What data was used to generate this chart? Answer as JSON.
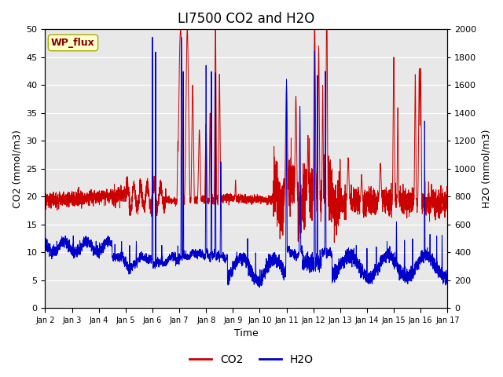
{
  "title": "LI7500 CO2 and H2O",
  "xlabel": "Time",
  "ylabel_left": "CO2 (mmol/m3)",
  "ylabel_right": "H2O (mmol/m3)",
  "ylim_left": [
    0,
    50
  ],
  "ylim_right": [
    0,
    2000
  ],
  "xlim": [
    1,
    16
  ],
  "xtick_labels": [
    "Jan 2",
    "Jan 3",
    "Jan 4",
    "Jan 5",
    "Jan 6",
    "Jan 7",
    "Jan 8",
    "Jan 9",
    "Jan 10",
    "Jan 11",
    "Jan 12",
    "Jan 13",
    "Jan 14",
    "Jan 15",
    "Jan 16",
    "Jan 17"
  ],
  "xtick_positions": [
    1,
    2,
    3,
    4,
    5,
    6,
    7,
    8,
    9,
    10,
    11,
    12,
    13,
    14,
    15,
    16
  ],
  "co2_color": "#cc0000",
  "h2o_color": "#0000cc",
  "bg_color": "#e8e8e8",
  "wp_flux_bg": "#ffffcc",
  "wp_flux_text": "#880000",
  "wp_flux_edge": "#aaaa00",
  "legend_co2": "CO2",
  "legend_h2o": "H2O",
  "title_fontsize": 12,
  "label_fontsize": 9,
  "tick_fontsize": 8,
  "grid_color": "#ffffff",
  "alt_band_color": "#d8d8d8"
}
